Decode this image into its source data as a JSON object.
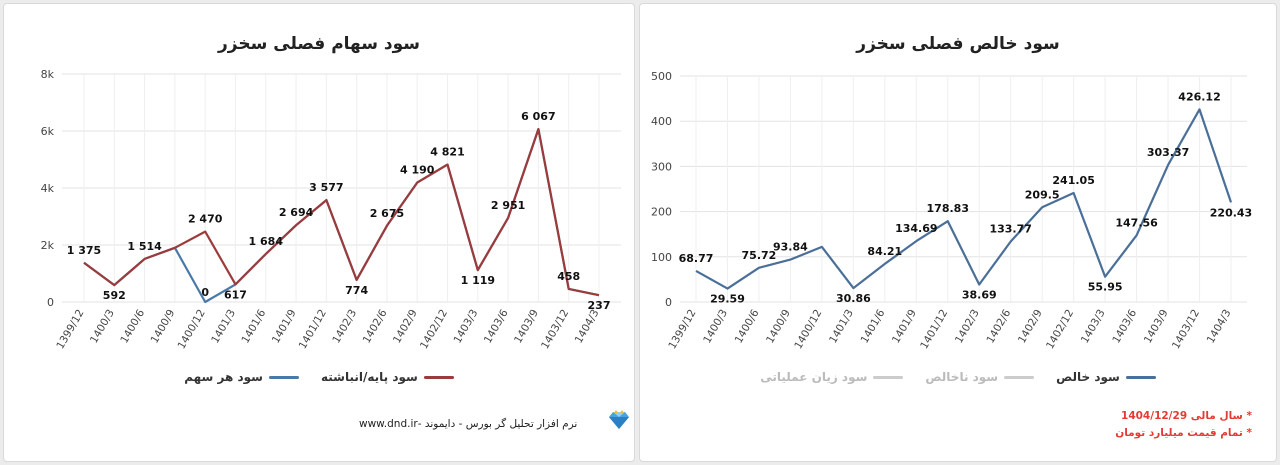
{
  "charts": [
    {
      "title": "سود سهام فصلی سخزر",
      "legend": [
        {
          "label": "سود پایه/انباشته",
          "color": "#9b3b3b",
          "active": true
        },
        {
          "label": "سود هر سهم",
          "color": "#4a78a8",
          "active": true
        }
      ],
      "footer_text": "نرم افزار تحلیل گر بورس - دایموند -www.dnd.ir",
      "logo_icon": "diamond-icon"
    },
    {
      "title": "سود خالص فصلی سخزر",
      "legend": [
        {
          "label": "سود خالص",
          "color": "#4a6f99",
          "active": true
        },
        {
          "label": "سود ناخالص",
          "color": "#cccccc",
          "active": false
        },
        {
          "label": "سود زیان عملیاتی",
          "color": "#cccccc",
          "active": false
        }
      ],
      "notes": [
        "* سال مالی 1404/12/29",
        "* تمام قیمت میلیارد تومان"
      ]
    }
  ],
  "chart_data": [
    {
      "type": "line",
      "title": "سود سهام فصلی سخزر",
      "categories": [
        "1399/12",
        "1400/3",
        "1400/6",
        "1400/9",
        "1400/12",
        "1401/3",
        "1401/6",
        "1401/9",
        "1401/12",
        "1402/3",
        "1402/6",
        "1402/9",
        "1402/12",
        "1403/3",
        "1403/6",
        "1403/9",
        "1403/12",
        "1404/3"
      ],
      "y_ticks": [
        "0",
        "2k",
        "4k",
        "6k",
        "8k"
      ],
      "ylim": [
        0,
        8000
      ],
      "grid": true,
      "legend_position": "bottom",
      "series": [
        {
          "name": "سود هر سهم",
          "color": "#4a78a8",
          "values": [
            1375,
            592,
            1514,
            1900,
            0,
            617,
            1684,
            2694,
            3577,
            774,
            2675,
            4190,
            4821,
            1119,
            2951,
            6067,
            458,
            237
          ]
        },
        {
          "name": "سود پایه/انباشته",
          "color": "#9b3b3b",
          "values": [
            1375,
            592,
            1514,
            1900,
            2470,
            617,
            1684,
            2694,
            3577,
            774,
            2675,
            4190,
            4821,
            1119,
            2951,
            6067,
            458,
            237
          ]
        }
      ],
      "data_labels": [
        "1 375",
        "592",
        "1 514",
        "",
        "2 470",
        "617",
        "1 684",
        "2 694",
        "3 577",
        "774",
        "2 675",
        "4 190",
        "4 821",
        "1 119",
        "2 951",
        "6 067",
        "458",
        "237"
      ],
      "extra_label": {
        "index": 4,
        "text": "0"
      }
    },
    {
      "type": "line",
      "title": "سود خالص فصلی سخزر",
      "categories": [
        "1399/12",
        "1400/3",
        "1400/6",
        "1400/9",
        "1400/12",
        "1401/3",
        "1401/6",
        "1401/9",
        "1401/12",
        "1402/3",
        "1402/6",
        "1402/9",
        "1402/12",
        "1403/3",
        "1403/6",
        "1403/9",
        "1403/12",
        "1404/3"
      ],
      "y_ticks": [
        "0",
        "100",
        "200",
        "300",
        "400",
        "500"
      ],
      "ylim": [
        0,
        500
      ],
      "grid": true,
      "legend_position": "bottom",
      "series": [
        {
          "name": "سود خالص",
          "color": "#4a6f99",
          "values": [
            68.77,
            29.59,
            75.72,
            93.84,
            122,
            30.86,
            84.21,
            134.69,
            178.83,
            38.69,
            133.77,
            209.5,
            241.05,
            55.95,
            147.56,
            303.37,
            426.12,
            220.43
          ]
        }
      ],
      "data_labels": [
        "68.77",
        "29.59",
        "75.72",
        "93.84",
        "",
        "30.86",
        "84.21",
        "134.69",
        "178.83",
        "38.69",
        "133.77",
        "209.5",
        "241.05",
        "55.95",
        "147.56",
        "303.37",
        "426.12",
        "220.43"
      ]
    }
  ]
}
